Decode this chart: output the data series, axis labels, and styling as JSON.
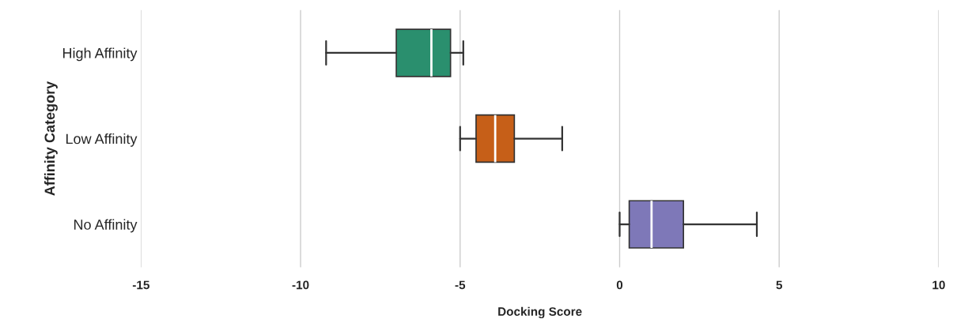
{
  "chart_data": {
    "type": "box",
    "orientation": "horizontal",
    "xlabel": "Docking Score",
    "ylabel": "Affinity Category",
    "categories": [
      "High Affinity",
      "Low Affinity",
      "No Affinity"
    ],
    "colors": [
      "#2a8f6e",
      "#c65f18",
      "#7e78b8"
    ],
    "boxes": [
      {
        "low": -9.2,
        "q1": -7.0,
        "median": -5.9,
        "q3": -5.3,
        "high": -4.9
      },
      {
        "low": -5.0,
        "q1": -4.5,
        "median": -3.9,
        "q3": -3.3,
        "high": -1.8
      },
      {
        "low": 0.0,
        "q1": 0.3,
        "median": 1.0,
        "q3": 2.0,
        "high": 4.3
      }
    ],
    "xlim": [
      -15,
      10
    ],
    "xticks": [
      -15,
      -10,
      -5,
      0,
      5,
      10
    ],
    "grid": "x"
  }
}
